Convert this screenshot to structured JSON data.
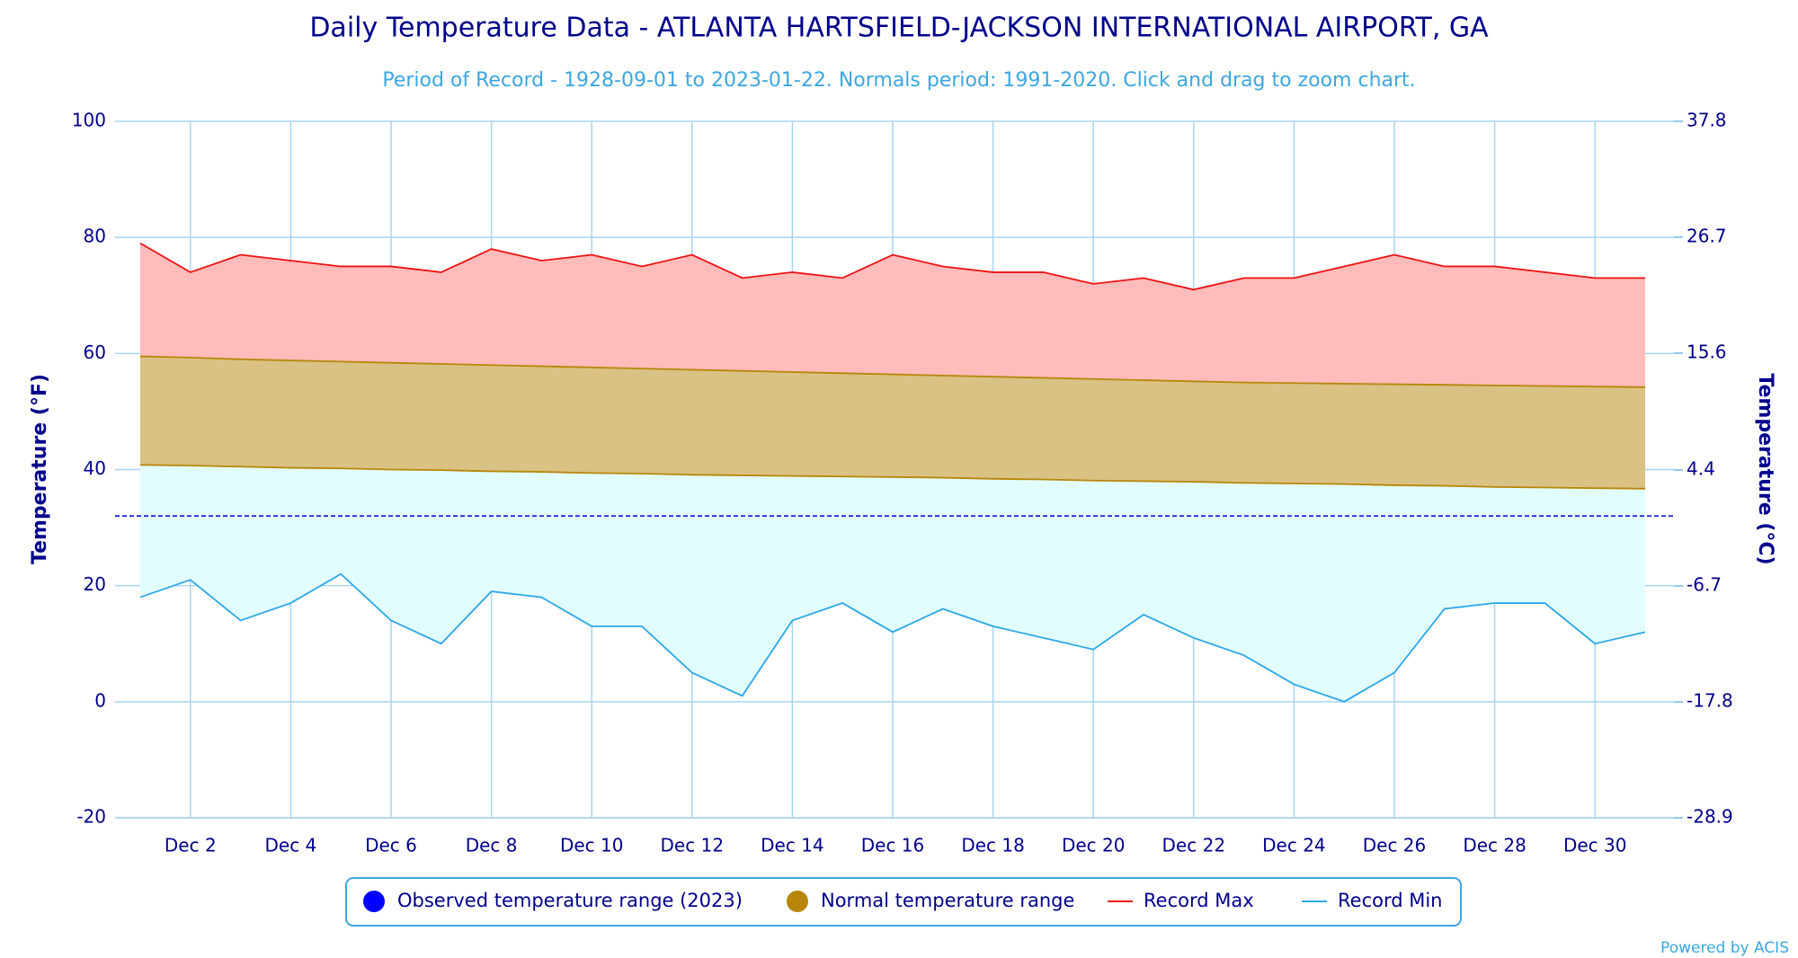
{
  "chart_data": {
    "type": "area-range",
    "title": "Daily Temperature Data - ATLANTA HARTSFIELD-JACKSON INTERNATIONAL AIRPORT, GA",
    "subtitle": "Period of Record - 1928-09-01 to 2023-01-22. Normals period: 1991-2020. Click and drag to zoom chart.",
    "y_label": "Temperature (°F)",
    "y2_label": "Temperature (°C)",
    "credit": "Powered by ACIS",
    "categories": [
      null,
      "Dec 2",
      null,
      "Dec 4",
      null,
      "Dec 6",
      null,
      "Dec 8",
      null,
      "Dec 10",
      null,
      "Dec 12",
      null,
      "Dec 14",
      null,
      "Dec 16",
      null,
      "Dec 18",
      null,
      "Dec 20",
      null,
      "Dec 22",
      null,
      "Dec 24",
      null,
      "Dec 26",
      null,
      "Dec 28",
      null,
      "Dec 30",
      null
    ],
    "ylim": [
      -20,
      100
    ],
    "yticks": [
      -20,
      0,
      20,
      40,
      60,
      80,
      100
    ],
    "y2lim": [
      -28.9,
      37.8
    ],
    "y2ticks": [
      -28.9,
      -17.8,
      -6.7,
      4.4,
      15.6,
      26.7,
      37.8
    ],
    "reference_line": 32,
    "grid": true,
    "observed": {
      "name": "Observed temperature range (2023)",
      "color": "#0000ff"
    },
    "normal": {
      "name": "Normal temperature range",
      "color": "#b8860b",
      "fill": "#d9c283",
      "high": [
        59.5,
        59.3,
        59.0,
        58.8,
        58.6,
        58.4,
        58.2,
        58.0,
        57.8,
        57.6,
        57.4,
        57.2,
        57.0,
        56.8,
        56.6,
        56.4,
        56.2,
        56.0,
        55.8,
        55.6,
        55.4,
        55.2,
        55.0,
        54.9,
        54.8,
        54.7,
        54.6,
        54.5,
        54.4,
        54.3,
        54.2
      ],
      "low": [
        40.8,
        40.7,
        40.5,
        40.3,
        40.2,
        40.0,
        39.9,
        39.7,
        39.6,
        39.4,
        39.3,
        39.1,
        39.0,
        38.9,
        38.8,
        38.7,
        38.6,
        38.4,
        38.3,
        38.1,
        38.0,
        37.9,
        37.7,
        37.6,
        37.5,
        37.3,
        37.2,
        37.0,
        36.9,
        36.8,
        36.7
      ]
    },
    "series": [
      {
        "name": "Record Max",
        "color": "#ee1111",
        "fill": "#ffbcba",
        "values": [
          79,
          74,
          77,
          76,
          75,
          75,
          74,
          78,
          76,
          77,
          75,
          77,
          73,
          74,
          73,
          77,
          75,
          74,
          74,
          72,
          73,
          71,
          73,
          73,
          75,
          77,
          75,
          75,
          74,
          73,
          73
        ]
      },
      {
        "name": "Record Min",
        "color": "#2ba7e8",
        "fill": "#e2fdfd",
        "values": [
          18,
          21,
          14,
          17,
          22,
          14,
          10,
          19,
          18,
          13,
          13,
          5,
          1,
          14,
          17,
          12,
          16,
          13,
          11,
          9,
          15,
          11,
          8,
          3,
          0,
          5,
          16,
          17,
          17,
          10,
          12
        ]
      }
    ],
    "legend": "bottom"
  }
}
